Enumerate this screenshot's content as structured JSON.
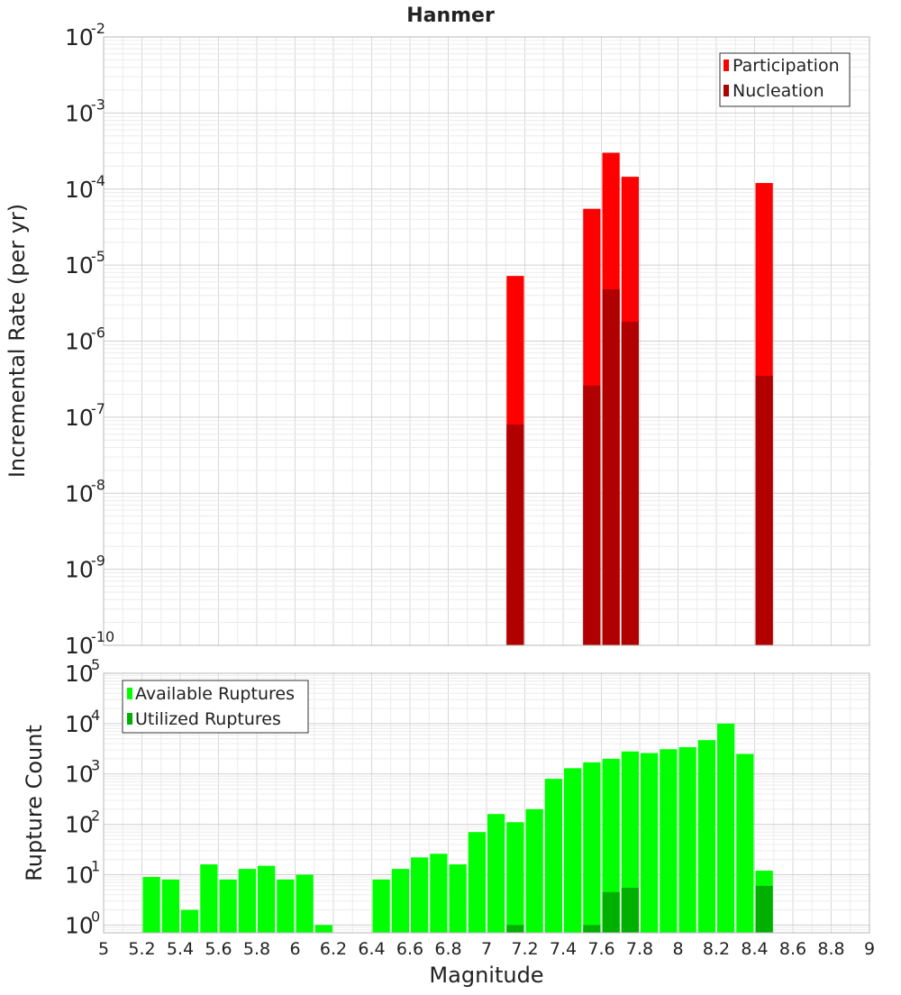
{
  "chart_data": [
    {
      "type": "bar",
      "title": "Hanmer",
      "ylabel": "Incremental Rate (per yr)",
      "xlabel": "",
      "y_scale": "log",
      "ylim": [
        1e-10,
        0.01
      ],
      "xlim": [
        5,
        9
      ],
      "bar_width": 0.1,
      "stacking": "overlay",
      "legend_position": "top-right",
      "grid": true,
      "y_tick_labels": [
        {
          "base": "10",
          "exp": "-10"
        },
        {
          "base": "10",
          "exp": "-9"
        },
        {
          "base": "10",
          "exp": "-8"
        },
        {
          "base": "10",
          "exp": "-7"
        },
        {
          "base": "10",
          "exp": "-6"
        },
        {
          "base": "10",
          "exp": "-5"
        },
        {
          "base": "10",
          "exp": "-4"
        },
        {
          "base": "10",
          "exp": "-3"
        },
        {
          "base": "10",
          "exp": "-2"
        }
      ],
      "series": [
        {
          "name": "Participation",
          "color": "#ff0000",
          "points": [
            {
              "x": 7.15,
              "y": 7.2e-06
            },
            {
              "x": 7.55,
              "y": 5.5e-05
            },
            {
              "x": 7.65,
              "y": 0.0003
            },
            {
              "x": 7.75,
              "y": 0.000145
            },
            {
              "x": 8.45,
              "y": 0.00012
            }
          ]
        },
        {
          "name": "Nucleation",
          "color": "#b00000",
          "points": [
            {
              "x": 7.15,
              "y": 8e-08
            },
            {
              "x": 7.55,
              "y": 2.6e-07
            },
            {
              "x": 7.65,
              "y": 4.8e-06
            },
            {
              "x": 7.75,
              "y": 1.8e-06
            },
            {
              "x": 8.45,
              "y": 3.5e-07
            }
          ]
        }
      ]
    },
    {
      "type": "bar",
      "title": "",
      "ylabel": "Rupture Count",
      "xlabel": "Magnitude",
      "y_scale": "log",
      "ylim": [
        0.7,
        100000.0
      ],
      "xlim": [
        5,
        9
      ],
      "bar_width": 0.1,
      "stacking": "overlay",
      "legend_position": "top-left",
      "grid": true,
      "x_ticks": [
        "5",
        "5.2",
        "5.4",
        "5.6",
        "5.8",
        "6",
        "6.2",
        "6.4",
        "6.6",
        "6.8",
        "7",
        "7.2",
        "7.4",
        "7.6",
        "7.8",
        "8",
        "8.2",
        "8.4",
        "8.6",
        "8.8",
        "9"
      ],
      "y_tick_labels": [
        {
          "base": "10",
          "exp": "0"
        },
        {
          "base": "10",
          "exp": "1"
        },
        {
          "base": "10",
          "exp": "2"
        },
        {
          "base": "10",
          "exp": "3"
        },
        {
          "base": "10",
          "exp": "4"
        },
        {
          "base": "10",
          "exp": "5"
        }
      ],
      "series": [
        {
          "name": "Available Ruptures",
          "color": "#00ff00",
          "points": [
            {
              "x": 5.25,
              "y": 9
            },
            {
              "x": 5.35,
              "y": 8
            },
            {
              "x": 5.45,
              "y": 2
            },
            {
              "x": 5.55,
              "y": 16
            },
            {
              "x": 5.65,
              "y": 8
            },
            {
              "x": 5.75,
              "y": 13
            },
            {
              "x": 5.85,
              "y": 15
            },
            {
              "x": 5.95,
              "y": 8
            },
            {
              "x": 6.05,
              "y": 10
            },
            {
              "x": 6.15,
              "y": 1
            },
            {
              "x": 6.45,
              "y": 8
            },
            {
              "x": 6.55,
              "y": 13
            },
            {
              "x": 6.65,
              "y": 22
            },
            {
              "x": 6.75,
              "y": 26
            },
            {
              "x": 6.85,
              "y": 16
            },
            {
              "x": 6.95,
              "y": 70
            },
            {
              "x": 7.05,
              "y": 160
            },
            {
              "x": 7.15,
              "y": 110
            },
            {
              "x": 7.25,
              "y": 200
            },
            {
              "x": 7.35,
              "y": 800
            },
            {
              "x": 7.45,
              "y": 1300
            },
            {
              "x": 7.55,
              "y": 1700
            },
            {
              "x": 7.65,
              "y": 2000
            },
            {
              "x": 7.75,
              "y": 2800
            },
            {
              "x": 7.85,
              "y": 2600
            },
            {
              "x": 7.95,
              "y": 3100
            },
            {
              "x": 8.05,
              "y": 3400
            },
            {
              "x": 8.15,
              "y": 4700
            },
            {
              "x": 8.25,
              "y": 10000
            },
            {
              "x": 8.35,
              "y": 2500
            },
            {
              "x": 8.45,
              "y": 12
            }
          ]
        },
        {
          "name": "Utilized Ruptures",
          "color": "#00b000",
          "points": [
            {
              "x": 7.15,
              "y": 1
            },
            {
              "x": 7.55,
              "y": 1
            },
            {
              "x": 7.65,
              "y": 4.5
            },
            {
              "x": 7.75,
              "y": 5.5
            },
            {
              "x": 8.45,
              "y": 6
            }
          ]
        }
      ]
    }
  ]
}
